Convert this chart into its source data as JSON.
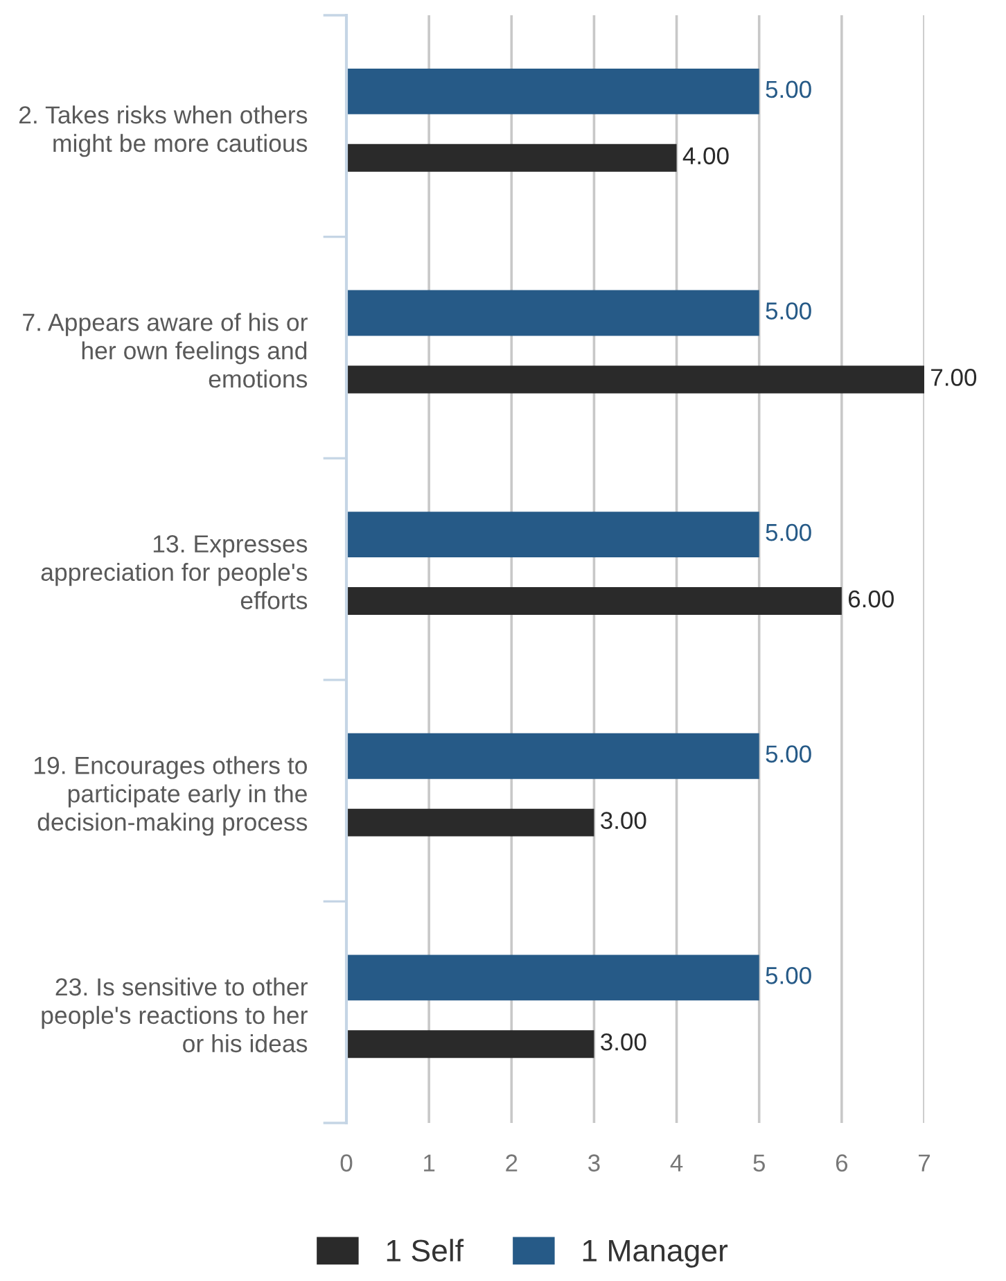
{
  "chart_data": {
    "type": "bar",
    "orientation": "horizontal",
    "categories": [
      "2. Takes risks when others\nmight be more cautious",
      "7. Appears aware of his or\nher own feelings and\nemotions",
      "13. Expresses\nappreciation for people's\nefforts",
      "19. Encourages others to\nparticipate early in the\ndecision-making process",
      "23. Is sensitive to other\npeople's reactions to her\nor his ideas"
    ],
    "series": [
      {
        "name": "1 Self",
        "color": "#2a2a2a",
        "values": [
          4,
          7,
          6,
          3,
          3
        ],
        "value_labels": [
          "4.00",
          "7.00",
          "6.00",
          "3.00",
          "3.00"
        ]
      },
      {
        "name": "1 Manager",
        "color": "#265a87",
        "values": [
          5,
          5,
          5,
          5,
          5
        ],
        "value_labels": [
          "5.00",
          "5.00",
          "5.00",
          "5.00",
          "5.00"
        ]
      }
    ],
    "xlim": [
      0,
      7
    ],
    "xticks": [
      0,
      1,
      2,
      3,
      4,
      5,
      6,
      7
    ],
    "grid": "x",
    "legend": "bottom"
  }
}
